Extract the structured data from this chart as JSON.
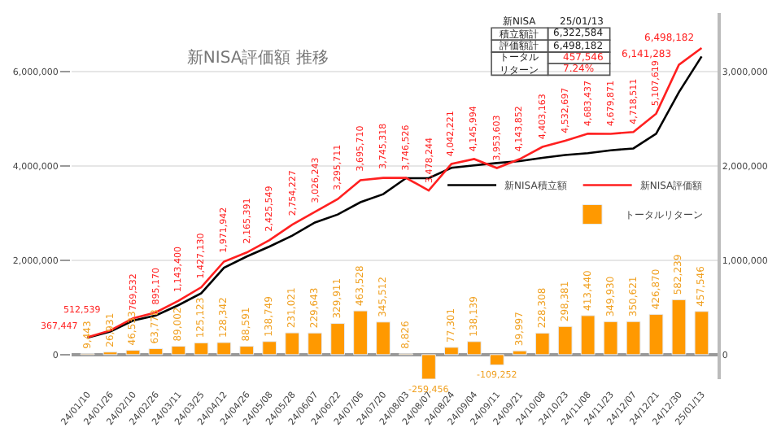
{
  "chart_data": {
    "type": "line",
    "title": "新NISA評価額 推移",
    "categories": [
      "24/01/10",
      "24/01/26",
      "24/02/10",
      "24/02/26",
      "24/03/11",
      "24/03/25",
      "24/04/12",
      "24/04/26",
      "24/05/08",
      "24/05/28",
      "24/06/07",
      "24/06/22",
      "24/07/06",
      "24/07/20",
      "24/08/03",
      "24/08/07",
      "24/08/24",
      "24/09/04",
      "24/09/11",
      "24/09/21",
      "24/10/08",
      "24/10/23",
      "24/11/08",
      "24/11/23",
      "24/12/07",
      "24/12/21",
      "24/12/30",
      "25/01/13"
    ],
    "series": [
      {
        "name": "新NISA積立額",
        "color": "#000000",
        "values": [
          360000,
          490000,
          720000,
          830000,
          1050000,
          1300000,
          1840000,
          2080000,
          2290000,
          2520000,
          2800000,
          2970000,
          3230000,
          3400000,
          3740000,
          3740000,
          3960000,
          4010000,
          4060000,
          4100000,
          4170000,
          4230000,
          4270000,
          4330000,
          4370000,
          4680000,
          5560000,
          6320000
        ]
      },
      {
        "name": "新NISA評価額",
        "color": "#ff2020",
        "values": [
          367447,
          512539,
          769532,
          895170,
          1143400,
          1427130,
          1971942,
          2165391,
          2425549,
          2754227,
          3026243,
          3295711,
          3695710,
          3745318,
          3746526,
          3478244,
          4042221,
          4145994,
          3953603,
          4143852,
          4403163,
          4532697,
          4683437,
          4679871,
          4718511,
          5107619,
          6141283,
          6498182
        ],
        "value_labels": [
          "367,447",
          "512,539",
          "769,532",
          "895,170",
          "1,143,400",
          "1,427,130",
          "1,971,942",
          "2,165,391",
          "2,425,549",
          "2,754,227",
          "3,026,243",
          "3,295,711",
          "3,695,710",
          "3,745,318",
          "3,746,526",
          "3,478,244",
          "4,042,221",
          "4,145,994",
          "3,953,603",
          "4,143,852",
          "4,403,163",
          "4,532,697",
          "4,683,437",
          "4,679,871",
          "4,718,511",
          "5,107,619",
          "6,141,283",
          "6,498,182"
        ]
      },
      {
        "name": "トータルリターン",
        "type": "bar",
        "axis": "y2",
        "color": "#ff9900",
        "values": [
          9443,
          26931,
          46533,
          63778,
          89002,
          125123,
          128342,
          88591,
          138749,
          231021,
          229643,
          329911,
          463528,
          345512,
          8826,
          -259456,
          77301,
          138139,
          -109252,
          39997,
          228308,
          298381,
          413440,
          349930,
          350621,
          426870,
          582239,
          457546
        ],
        "value_labels": [
          "9,443",
          "26,931",
          "46,533",
          "63,778",
          "89,002",
          "125,123",
          "128,342",
          "88,591",
          "138,749",
          "231,021",
          "229,643",
          "329,911",
          "463,528",
          "345,512",
          "8,826",
          "-259,456",
          "77,301",
          "138,139",
          "-109,252",
          "39,997",
          "228,308",
          "298,381",
          "413,440",
          "349,930",
          "350,621",
          "426,870",
          "582,239",
          "457,546"
        ]
      }
    ],
    "ylim": [
      -520000,
      7240000
    ],
    "yticks": [
      {
        "value": 0,
        "label": "0"
      },
      {
        "value": 2000000,
        "label": "2,000,000"
      },
      {
        "value": 4000000,
        "label": "4,000,000"
      },
      {
        "value": 6000000,
        "label": "6,000,000"
      }
    ],
    "y2lim": [
      -260000,
      3620000
    ],
    "y2ticks": [
      {
        "value": 0,
        "label": "0"
      },
      {
        "value": 1000000,
        "label": "1,000,000"
      },
      {
        "value": 2000000,
        "label": "2,000,000"
      },
      {
        "value": 3000000,
        "label": "3,000,000"
      }
    ],
    "grid": "y",
    "legend": "right",
    "marker": "none",
    "line_style": "solid",
    "annotations": [
      "新NISA",
      "25/01/13",
      "積立額計",
      "6,322,584",
      "評価額計",
      "6,498,182",
      "トータルリターン",
      "457,546",
      "7.24%"
    ]
  }
}
